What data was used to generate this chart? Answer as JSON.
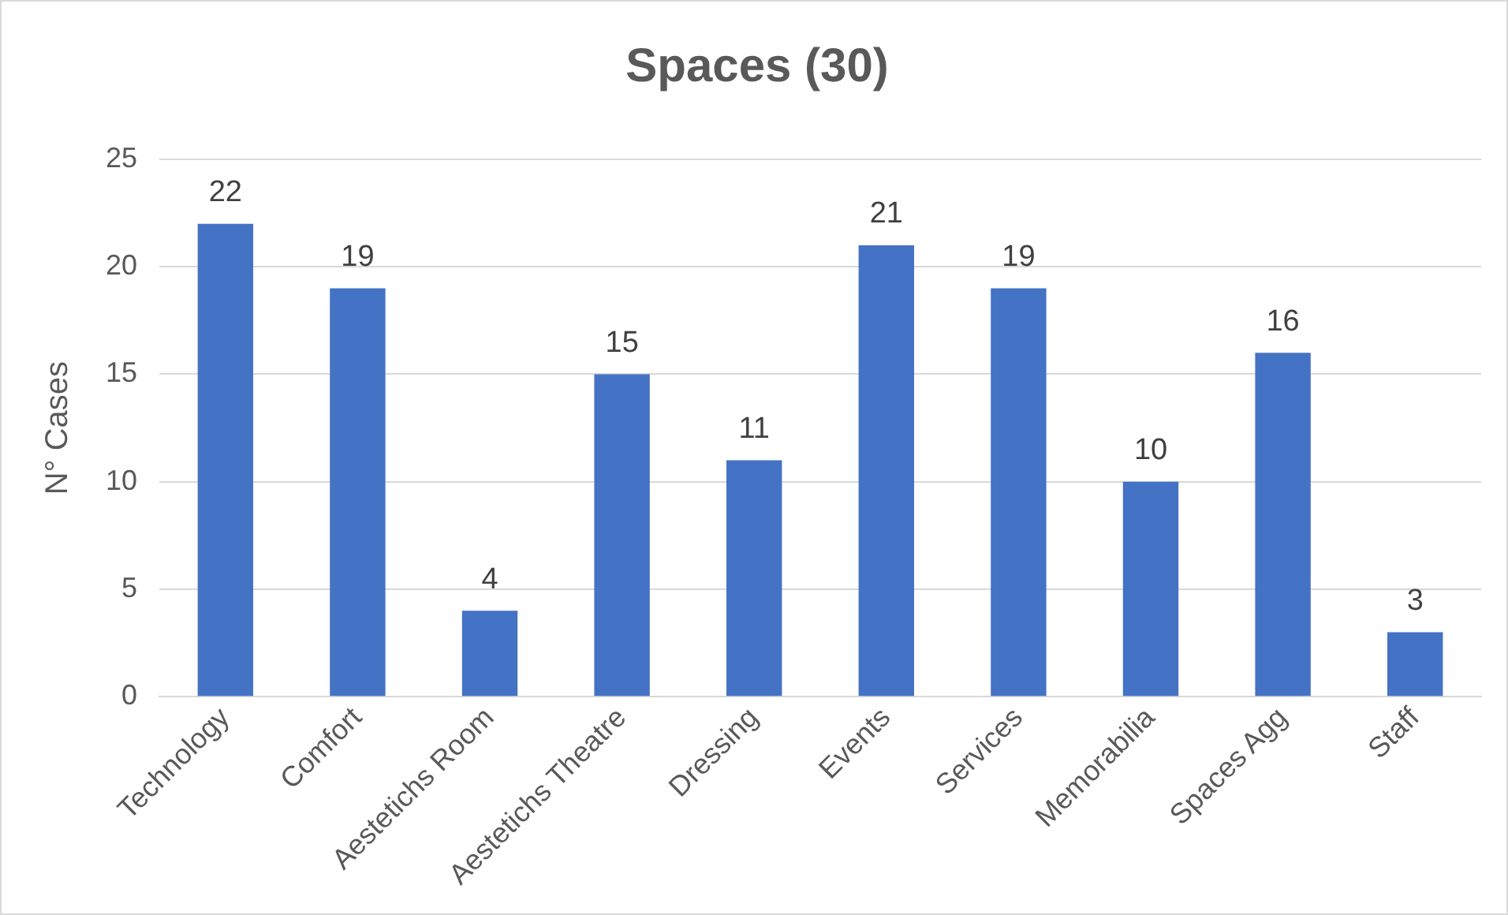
{
  "chart_data": {
    "type": "bar",
    "title": "Spaces (30)",
    "ylabel": "N° Cases",
    "categories": [
      "Technology",
      "Comfort",
      "Aestetichs Room",
      "Aestetichs Theatre",
      "Dressing",
      "Events",
      "Services",
      "Memorabilia",
      "Spaces Agg",
      "Staff"
    ],
    "values": [
      22,
      19,
      4,
      15,
      11,
      21,
      19,
      10,
      16,
      3
    ],
    "color": "#4472c4",
    "ylim": [
      0,
      25
    ],
    "yticks": [
      0,
      5,
      10,
      15,
      20,
      25
    ],
    "grid": "y",
    "data_labels": true,
    "legend": false
  }
}
